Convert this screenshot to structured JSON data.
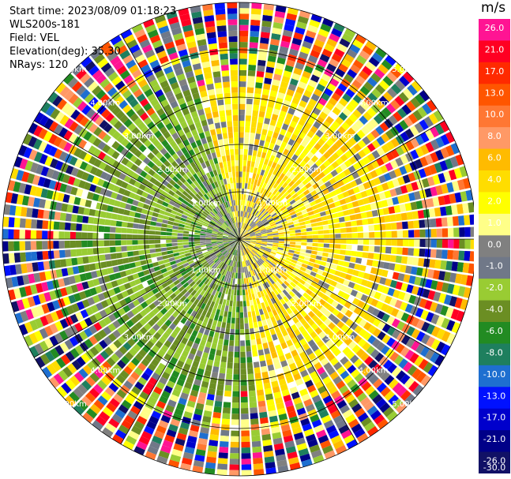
{
  "header": {
    "start_time": "Start time: 2023/08/09 01:18:23",
    "instrument": "WLS200s-181",
    "field": "Field: VEL",
    "elevation": "Elevation(deg): 35.30",
    "nrays": "NRays: 120"
  },
  "chart_data": {
    "type": "heatmap",
    "projection": "polar-ppi",
    "title": "",
    "range_ring_labels": [
      "1.00km",
      "2.00km",
      "3.00km",
      "4.00km",
      "5.00km"
    ],
    "range_rings_km": [
      1,
      2,
      3,
      4,
      5
    ],
    "max_range_km": 5.0,
    "nrays": 120,
    "colorbar": {
      "unit": "m/s",
      "tick_labels": [
        "26.0",
        "21.0",
        "17.0",
        "13.0",
        "10.0",
        "8.0",
        "6.0",
        "4.0",
        "2.0",
        "1.0",
        "0.0",
        "-1.0",
        "-2.0",
        "-4.0",
        "-6.0",
        "-8.0",
        "-10.0",
        "-13.0",
        "-17.0",
        "-21.0",
        "-26.0",
        "-30.0"
      ],
      "colors": [
        "#ff1493",
        "#ff0022",
        "#ff2a00",
        "#ff5500",
        "#ff7733",
        "#ff9966",
        "#ffbb00",
        "#ffdd00",
        "#ffff00",
        "#ffff88",
        "#808080",
        "#707888",
        "#99cc33",
        "#6b8e23",
        "#228b22",
        "#1e7f5e",
        "#1e6fd0",
        "#0011ff",
        "#0000cc",
        "#000088",
        "#111166"
      ]
    },
    "pattern": {
      "receding_sector_deg": [
        345,
        175
      ],
      "approaching_sector_deg": [
        175,
        345
      ],
      "noise_beyond_km": 4.0,
      "grid": true
    }
  }
}
